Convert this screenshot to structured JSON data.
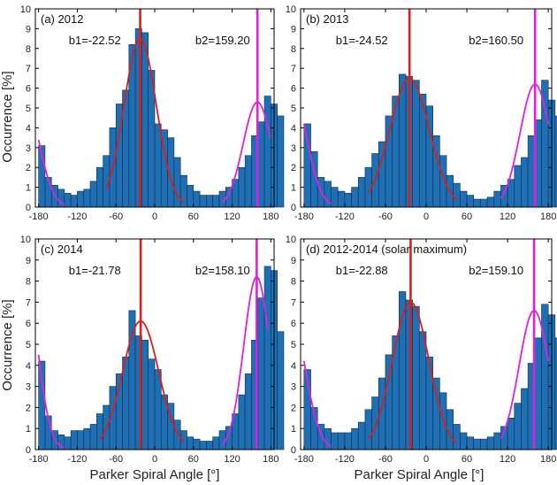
{
  "figure": {
    "xlabel": "Parker Spiral Angle [°]",
    "ylabel": "Occurrence [%]"
  },
  "colors": {
    "bar": "#1f6fb5",
    "bar_edge": "#0d2e4d",
    "fit1": "#d62020",
    "fit2": "#e020e0",
    "axis": "#000000"
  },
  "chart_data": [
    {
      "type": "bar",
      "title": "(a) 2012",
      "b1_label": "b1=-22.52",
      "b2_label": "b2=159.20",
      "b1": -22.52,
      "b2": 159.2,
      "xlim": [
        -185,
        185
      ],
      "ylim": [
        0,
        10
      ],
      "xticks": [
        -180,
        -120,
        -60,
        0,
        60,
        120,
        180
      ],
      "yticks": [
        0,
        1,
        2,
        3,
        4,
        5,
        6,
        7,
        8,
        9,
        10
      ],
      "bin_width": 10,
      "bin_start": -180,
      "values": [
        3.1,
        1.5,
        1.1,
        0.9,
        0.7,
        0.6,
        0.8,
        0.9,
        1.3,
        2.0,
        2.6,
        4.0,
        5.2,
        5.9,
        8.2,
        9.0,
        8.8,
        6.9,
        4.2,
        3.9,
        3.5,
        2.5,
        1.6,
        1.1,
        0.8,
        0.6,
        0.6,
        0.6,
        0.8,
        1.0,
        1.4,
        2.0,
        2.6,
        3.6,
        4.3,
        5.6,
        5.2,
        4.6
      ],
      "fit1": {
        "amp": 8.5,
        "center": -22.52,
        "sigma": 25,
        "base": 0.0,
        "x_range": [
          -75,
          45
        ]
      },
      "fit2": {
        "amp": 5.3,
        "center": 159.2,
        "sigma": 22,
        "base": 0.0,
        "x_range": [
          105,
          180
        ]
      },
      "fit2_wrap": {
        "x_range": [
          -180,
          -140
        ]
      }
    },
    {
      "type": "bar",
      "title": "(b) 2013",
      "b1_label": "b1=-24.52",
      "b2_label": "b2=160.50",
      "b1": -24.52,
      "b2": 160.5,
      "xlim": [
        -185,
        185
      ],
      "ylim": [
        0,
        10
      ],
      "xticks": [
        -180,
        -120,
        -60,
        0,
        60,
        120,
        180
      ],
      "yticks": [
        0,
        1,
        2,
        3,
        4,
        5,
        6,
        7,
        8,
        9,
        10
      ],
      "bin_width": 10,
      "bin_start": -180,
      "values": [
        4.2,
        2.8,
        1.5,
        1.3,
        1.0,
        0.8,
        0.7,
        1.0,
        1.5,
        2.0,
        2.7,
        3.3,
        4.6,
        5.6,
        6.7,
        6.6,
        6.4,
        5.7,
        5.1,
        3.6,
        2.6,
        1.6,
        1.2,
        0.8,
        0.6,
        0.4,
        0.4,
        0.5,
        0.8,
        1.1,
        1.4,
        2.1,
        2.5,
        3.6,
        4.4,
        6.4,
        5.4,
        4.6
      ],
      "fit1": {
        "amp": 6.5,
        "center": -24.52,
        "sigma": 29,
        "base": 0.0,
        "x_range": [
          -85,
          45
        ]
      },
      "fit2": {
        "amp": 6.2,
        "center": 160.5,
        "sigma": 22,
        "base": 0.0,
        "x_range": [
          110,
          180
        ]
      },
      "fit2_wrap": {
        "x_range": [
          -180,
          -140
        ]
      }
    },
    {
      "type": "bar",
      "title": "(c) 2014",
      "b1_label": "b1=-21.78",
      "b2_label": "b2=158.10",
      "b1": -21.78,
      "b2": 158.1,
      "xlim": [
        -185,
        185
      ],
      "ylim": [
        0,
        10
      ],
      "xticks": [
        -180,
        -120,
        -60,
        0,
        60,
        120,
        180
      ],
      "yticks": [
        0,
        1,
        2,
        3,
        4,
        5,
        6,
        7,
        8,
        9,
        10
      ],
      "bin_width": 10,
      "bin_start": -180,
      "values": [
        4.2,
        1.6,
        0.9,
        0.7,
        0.6,
        0.9,
        0.9,
        1.0,
        1.2,
        1.7,
        2.1,
        3.0,
        3.6,
        4.4,
        6.6,
        5.4,
        5.2,
        4.3,
        3.8,
        2.6,
        2.2,
        1.4,
        0.9,
        0.6,
        0.5,
        0.4,
        0.4,
        0.6,
        0.9,
        1.1,
        1.7,
        2.6,
        3.6,
        5.2,
        7.2,
        8.7,
        8.5,
        5.6
      ],
      "fit1": {
        "amp": 6.1,
        "center": -21.78,
        "sigma": 28,
        "base": 0.0,
        "x_range": [
          -85,
          45
        ]
      },
      "fit2": {
        "amp": 8.2,
        "center": 158.1,
        "sigma": 20,
        "base": 0.0,
        "x_range": [
          105,
          175
        ]
      },
      "fit2_wrap": {
        "x_range": [
          -180,
          -140
        ]
      }
    },
    {
      "type": "bar",
      "title": "(d) 2012-2014 (solar maximum)",
      "b1_label": "b1=-22.88",
      "b2_label": "b2=159.10",
      "b1": -22.88,
      "b2": 159.1,
      "xlim": [
        -185,
        185
      ],
      "ylim": [
        0,
        10
      ],
      "xticks": [
        -180,
        -120,
        -60,
        0,
        60,
        120,
        180
      ],
      "yticks": [
        0,
        1,
        2,
        3,
        4,
        5,
        6,
        7,
        8,
        9,
        10
      ],
      "bin_width": 10,
      "bin_start": -180,
      "values": [
        3.8,
        2.0,
        1.2,
        1.0,
        0.8,
        0.8,
        0.8,
        1.0,
        1.3,
        1.9,
        2.5,
        3.4,
        4.5,
        5.4,
        7.5,
        7.1,
        6.8,
        5.6,
        4.4,
        3.4,
        2.7,
        1.9,
        1.2,
        0.8,
        0.6,
        0.5,
        0.5,
        0.6,
        0.8,
        1.1,
        1.5,
        2.2,
        2.9,
        4.1,
        5.3,
        6.9,
        6.4,
        5.3
      ],
      "fit1": {
        "amp": 7.0,
        "center": -22.88,
        "sigma": 27,
        "base": 0.0,
        "x_range": [
          -85,
          45
        ]
      },
      "fit2": {
        "amp": 6.6,
        "center": 159.1,
        "sigma": 22,
        "base": 0.0,
        "x_range": [
          110,
          180
        ]
      },
      "fit2_wrap": {
        "x_range": [
          -180,
          -140
        ]
      }
    }
  ]
}
